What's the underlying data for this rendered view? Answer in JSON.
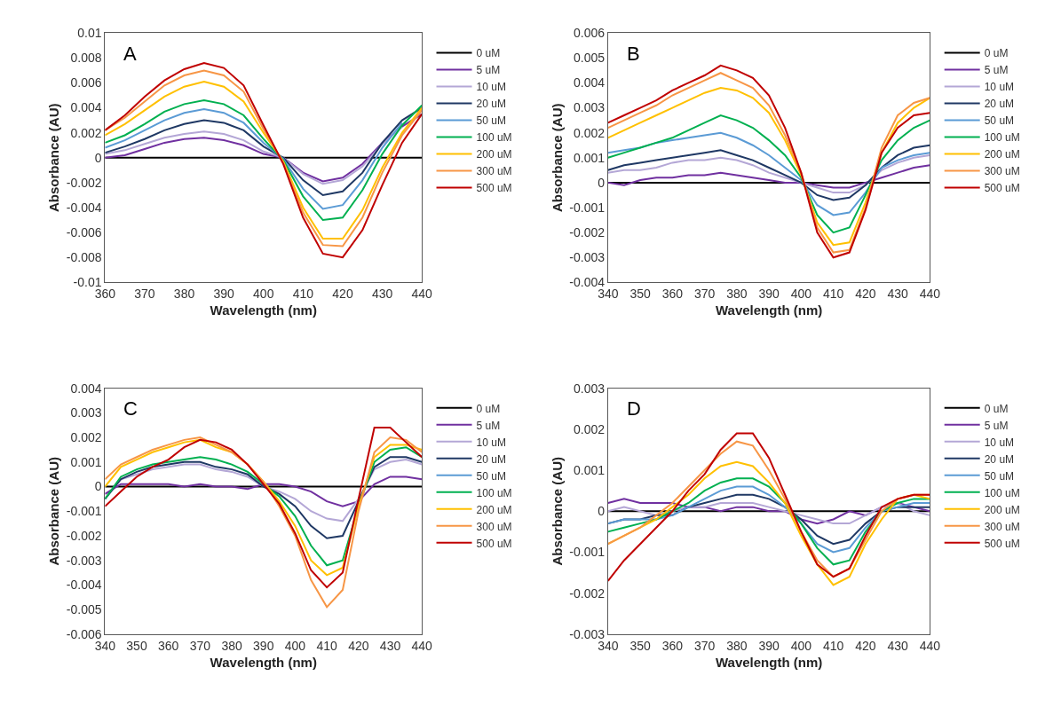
{
  "chart_data": [
    {
      "type": "line",
      "annotations": [
        "A"
      ],
      "xlabel": "Wavelength (nm)",
      "ylabel": "Absorbance (AU)",
      "legend": "right",
      "grid": false,
      "marker": "none",
      "line_style": "solid",
      "x": [
        360,
        365,
        370,
        375,
        380,
        385,
        390,
        395,
        400,
        405,
        410,
        415,
        420,
        425,
        430,
        435,
        440
      ],
      "xlim": [
        360,
        440
      ],
      "xticks": [
        360,
        370,
        380,
        390,
        400,
        410,
        420,
        430,
        440
      ],
      "ylim": [
        -0.01,
        0.01
      ],
      "yticks": [
        -0.01,
        -0.008,
        -0.006,
        -0.004,
        -0.002,
        0,
        0.002,
        0.004,
        0.006,
        0.008,
        0.01
      ],
      "series": [
        {
          "name": "0 uM",
          "color": "#000000",
          "values": [
            0,
            0,
            0,
            0,
            0,
            0,
            0,
            0,
            0,
            0,
            0,
            0,
            0,
            0,
            0,
            0,
            0
          ]
        },
        {
          "name": "5 uM",
          "color": "#7030a0",
          "values": [
            0,
            0.0002,
            0.0007,
            0.0012,
            0.0015,
            0.0016,
            0.0014,
            0.001,
            0.0003,
            0,
            -0.0012,
            -0.0019,
            -0.0016,
            -0.0005,
            0.0012,
            0.0025,
            0.0035
          ]
        },
        {
          "name": "10 uM",
          "color": "#b4a7d6",
          "values": [
            0.0003,
            0.0006,
            0.0011,
            0.0016,
            0.0019,
            0.0021,
            0.0019,
            0.0014,
            0.0005,
            0,
            -0.0013,
            -0.0021,
            -0.0018,
            -0.0007,
            0.0011,
            0.0025,
            null
          ]
        },
        {
          "name": "20 uM",
          "color": "#1f3864",
          "values": [
            0.0004,
            0.0009,
            0.0015,
            0.0022,
            0.0027,
            0.003,
            0.0028,
            0.0022,
            0.0009,
            0,
            -0.0018,
            -0.003,
            -0.0027,
            -0.0012,
            0.0012,
            0.003,
            0.004
          ]
        },
        {
          "name": "50 uM",
          "color": "#5b9bd5",
          "values": [
            0.0008,
            0.0014,
            0.0022,
            0.003,
            0.0036,
            0.0039,
            0.0036,
            0.0028,
            0.0012,
            -0.0001,
            -0.0025,
            -0.0041,
            -0.0038,
            -0.0018,
            0.0008,
            0.0028,
            null
          ]
        },
        {
          "name": "100 uM",
          "color": "#00b050",
          "values": [
            0.0012,
            0.0018,
            0.0027,
            0.0037,
            0.0043,
            0.0046,
            0.0043,
            0.0034,
            0.0015,
            -0.0002,
            -0.0031,
            -0.005,
            -0.0048,
            -0.0026,
            0.0003,
            0.0026,
            0.0042
          ]
        },
        {
          "name": "200 uM",
          "color": "#ffc000",
          "values": [
            0.0018,
            0.0027,
            0.0038,
            0.0049,
            0.0057,
            0.0061,
            0.0057,
            0.0045,
            0.002,
            -0.0003,
            -0.004,
            -0.0065,
            -0.0065,
            -0.0042,
            -0.0008,
            0.002,
            0.004
          ]
        },
        {
          "name": "300 uM",
          "color": "#f79646",
          "values": [
            0.0022,
            0.0032,
            0.0045,
            0.0058,
            0.0066,
            0.007,
            0.0066,
            0.0053,
            0.0023,
            -0.0004,
            -0.0044,
            -0.007,
            -0.0071,
            -0.0048,
            -0.0012,
            0.0018,
            0.0038
          ]
        },
        {
          "name": "500 uM",
          "color": "#c00000",
          "values": [
            0.0022,
            0.0034,
            0.0049,
            0.0062,
            0.0071,
            0.0076,
            0.0072,
            0.0058,
            0.0026,
            -0.0005,
            -0.0048,
            -0.0077,
            -0.008,
            -0.0058,
            -0.0022,
            0.0012,
            0.0035
          ]
        }
      ]
    },
    {
      "type": "line",
      "annotations": [
        "B"
      ],
      "xlabel": "Wavelength (nm)",
      "ylabel": "Absorbance (AU)",
      "legend": "right",
      "grid": false,
      "marker": "none",
      "line_style": "solid",
      "x": [
        340,
        345,
        350,
        355,
        360,
        365,
        370,
        375,
        380,
        385,
        390,
        395,
        400,
        405,
        410,
        415,
        420,
        425,
        430,
        435,
        440
      ],
      "xlim": [
        340,
        440
      ],
      "xticks": [
        340,
        350,
        360,
        370,
        380,
        390,
        400,
        410,
        420,
        430,
        440
      ],
      "ylim": [
        -0.004,
        0.006
      ],
      "yticks": [
        -0.004,
        -0.003,
        -0.002,
        -0.001,
        0,
        0.001,
        0.002,
        0.003,
        0.004,
        0.005,
        0.006
      ],
      "series": [
        {
          "name": "0 uM",
          "color": "#000000",
          "values": [
            0,
            0,
            0,
            0,
            0,
            0,
            0,
            0,
            0,
            0,
            0,
            0,
            0,
            0,
            0,
            0,
            0,
            0,
            0,
            0,
            0
          ]
        },
        {
          "name": "5 uM",
          "color": "#7030a0",
          "values": [
            0,
            -0.0001,
            0.0001,
            0.0002,
            0.0002,
            0.0003,
            0.0003,
            0.0004,
            0.0003,
            0.0002,
            0.0001,
            0,
            0,
            -0.0001,
            -0.0002,
            -0.0002,
            0,
            0.0002,
            0.0004,
            0.0006,
            0.0007
          ]
        },
        {
          "name": "10 uM",
          "color": "#b4a7d6",
          "values": [
            0.0004,
            0.0005,
            0.0005,
            0.0006,
            0.0008,
            0.0009,
            0.0009,
            0.001,
            0.0009,
            0.0007,
            0.0004,
            0.0002,
            0,
            -0.0002,
            -0.0004,
            -0.0004,
            -0.0001,
            0.0005,
            0.0008,
            0.001,
            0.0011
          ]
        },
        {
          "name": "20 uM",
          "color": "#1f3864",
          "values": [
            0.0005,
            0.0007,
            0.0008,
            0.0009,
            0.001,
            0.0011,
            0.0012,
            0.0013,
            0.0011,
            0.0009,
            0.0006,
            0.0003,
            0,
            -0.0005,
            -0.0007,
            -0.0006,
            -0.0001,
            0.0006,
            0.0011,
            0.0014,
            0.0015
          ]
        },
        {
          "name": "50 uM",
          "color": "#5b9bd5",
          "values": [
            0.0012,
            0.0013,
            0.0014,
            0.0016,
            0.0017,
            0.0018,
            0.0019,
            0.002,
            0.0018,
            0.0015,
            0.0011,
            0.0006,
            0.0001,
            -0.0009,
            -0.0013,
            -0.0012,
            -0.0004,
            0.0006,
            0.0009,
            0.0011,
            0.0012
          ]
        },
        {
          "name": "100 uM",
          "color": "#00b050",
          "values": [
            0.001,
            0.0012,
            0.0014,
            0.0016,
            0.0018,
            0.0021,
            0.0024,
            0.0027,
            0.0025,
            0.0022,
            0.0017,
            0.0011,
            0.0002,
            -0.0013,
            -0.002,
            -0.0018,
            -0.0005,
            0.0009,
            0.0017,
            0.0022,
            0.0025
          ]
        },
        {
          "name": "200 uM",
          "color": "#ffc000",
          "values": [
            0.0018,
            0.0021,
            0.0024,
            0.0027,
            0.003,
            0.0033,
            0.0036,
            0.0038,
            0.0037,
            0.0034,
            0.0028,
            0.0017,
            0.0003,
            -0.0016,
            -0.0025,
            -0.0024,
            -0.0008,
            0.0012,
            0.0024,
            0.003,
            0.0034
          ]
        },
        {
          "name": "300 uM",
          "color": "#f79646",
          "values": [
            0.0022,
            0.0025,
            0.0028,
            0.0031,
            0.0035,
            0.0038,
            0.0041,
            0.0044,
            0.0041,
            0.0038,
            0.0031,
            0.0019,
            0.0004,
            -0.0018,
            -0.0028,
            -0.0027,
            -0.001,
            0.0014,
            0.0027,
            0.0032,
            0.0034
          ]
        },
        {
          "name": "500 uM",
          "color": "#c00000",
          "values": [
            0.0024,
            0.0027,
            0.003,
            0.0033,
            0.0037,
            0.004,
            0.0043,
            0.0047,
            0.0045,
            0.0042,
            0.0035,
            0.0022,
            0.0004,
            -0.002,
            -0.003,
            -0.0028,
            -0.0011,
            0.0012,
            0.0022,
            0.0027,
            0.0028
          ]
        }
      ]
    },
    {
      "type": "line",
      "annotations": [
        "C"
      ],
      "xlabel": "Wavelength (nm)",
      "ylabel": "Absorbance (AU)",
      "legend": "right",
      "grid": false,
      "marker": "none",
      "line_style": "solid",
      "x": [
        340,
        345,
        350,
        355,
        360,
        365,
        370,
        375,
        380,
        385,
        390,
        395,
        400,
        405,
        410,
        415,
        420,
        425,
        430,
        435,
        440
      ],
      "xlim": [
        340,
        440
      ],
      "xticks": [
        340,
        350,
        360,
        370,
        380,
        390,
        400,
        410,
        420,
        430,
        440
      ],
      "ylim": [
        -0.006,
        0.004
      ],
      "yticks": [
        -0.006,
        -0.005,
        -0.004,
        -0.003,
        -0.002,
        -0.001,
        0,
        0.001,
        0.002,
        0.003,
        0.004
      ],
      "series": [
        {
          "name": "0 uM",
          "color": "#000000",
          "values": [
            0,
            0,
            0,
            0,
            0,
            0,
            0,
            0,
            0,
            0,
            0,
            0,
            0,
            0,
            0,
            0,
            0,
            0,
            0,
            0,
            0
          ]
        },
        {
          "name": "5 uM",
          "color": "#7030a0",
          "values": [
            -0.0003,
            0.0001,
            0.0001,
            0.0001,
            0.0001,
            0,
            0.0001,
            0,
            0,
            -0.0001,
            0.0001,
            0.0001,
            0,
            -0.0002,
            -0.0006,
            -0.0008,
            -0.0006,
            0.0001,
            0.0004,
            0.0004,
            0.0003
          ]
        },
        {
          "name": "10 uM",
          "color": "#b4a7d6",
          "values": [
            -0.0005,
            0.0003,
            0.0005,
            0.0007,
            0.0008,
            0.0009,
            0.0009,
            0.0007,
            0.0006,
            0.0004,
            0,
            -0.0002,
            -0.0005,
            -0.001,
            -0.0013,
            -0.0014,
            -0.0005,
            0.0007,
            0.001,
            0.0011,
            0.0009
          ]
        },
        {
          "name": "20 uM",
          "color": "#1f3864",
          "values": [
            -0.0005,
            0.0003,
            0.0006,
            0.0008,
            0.0009,
            0.001,
            0.001,
            0.0008,
            0.0007,
            0.0005,
            0,
            -0.0003,
            -0.0008,
            -0.0016,
            -0.0021,
            -0.002,
            -0.0006,
            0.0008,
            0.0012,
            0.0012,
            0.001
          ]
        },
        {
          "name": "50 uM",
          "color": "#5b9bd5",
          "values": [
            null,
            null,
            null,
            null,
            null,
            null,
            null,
            null,
            null,
            null,
            null,
            null,
            null,
            null,
            null,
            null,
            null,
            null,
            null,
            null,
            null
          ]
        },
        {
          "name": "100 uM",
          "color": "#00b050",
          "values": [
            -0.0005,
            0.0004,
            0.0007,
            0.0009,
            0.001,
            0.0011,
            0.0012,
            0.0011,
            0.0009,
            0.0006,
            0.0001,
            -0.0004,
            -0.0012,
            -0.0024,
            -0.0032,
            -0.003,
            -0.0008,
            0.001,
            0.0015,
            0.0016,
            0.0012
          ]
        },
        {
          "name": "200 uM",
          "color": "#ffc000",
          "values": [
            0,
            0.0008,
            0.0011,
            0.0014,
            0.0016,
            0.0018,
            0.0019,
            0.0016,
            0.0014,
            0.0009,
            0.0002,
            -0.0006,
            -0.0016,
            -0.003,
            -0.0036,
            -0.0033,
            -0.0008,
            0.0012,
            0.0017,
            0.0017,
            0.0015
          ]
        },
        {
          "name": "300 uM",
          "color": "#f79646",
          "values": [
            0.0003,
            0.0009,
            0.0012,
            0.0015,
            0.0017,
            0.0019,
            0.002,
            0.0017,
            0.0014,
            0.0009,
            0.0002,
            -0.0008,
            -0.002,
            -0.0038,
            -0.0049,
            -0.0042,
            -0.001,
            0.0014,
            0.002,
            0.0019,
            0.0014
          ]
        },
        {
          "name": "500 uM",
          "color": "#c00000",
          "values": [
            -0.0008,
            -0.0002,
            0.0004,
            0.0008,
            0.0011,
            0.0016,
            0.0019,
            0.0018,
            0.0015,
            0.0009,
            0.0001,
            -0.0007,
            -0.0019,
            -0.0034,
            -0.0041,
            -0.0035,
            -0.0005,
            0.0024,
            0.0024,
            0.0018,
            0.0012
          ]
        }
      ]
    },
    {
      "type": "line",
      "annotations": [
        "D"
      ],
      "xlabel": "Wavelength (nm)",
      "ylabel": "Absorbance (AU)",
      "legend": "right",
      "grid": false,
      "marker": "none",
      "line_style": "solid",
      "x": [
        340,
        345,
        350,
        355,
        360,
        365,
        370,
        375,
        380,
        385,
        390,
        395,
        400,
        405,
        410,
        415,
        420,
        425,
        430,
        435,
        440
      ],
      "xlim": [
        340,
        440
      ],
      "xticks": [
        340,
        350,
        360,
        370,
        380,
        390,
        400,
        410,
        420,
        430,
        440
      ],
      "ylim": [
        -0.003,
        0.003
      ],
      "yticks": [
        -0.003,
        -0.002,
        -0.001,
        0,
        0.001,
        0.002,
        0.003
      ],
      "series": [
        {
          "name": "0 uM",
          "color": "#000000",
          "values": [
            0,
            0,
            0,
            0,
            0,
            0,
            0,
            0,
            0,
            0,
            0,
            0,
            0,
            0,
            0,
            0,
            0,
            0,
            0,
            0,
            0
          ]
        },
        {
          "name": "5 uM",
          "color": "#7030a0",
          "values": [
            0.0002,
            0.0003,
            0.0002,
            0.0002,
            0.0002,
            0.0001,
            0.0001,
            0,
            0.0001,
            0.0001,
            0,
            0,
            -0.0002,
            -0.0003,
            -0.0002,
            0,
            -0.0001,
            0.0001,
            0.0002,
            0.0001,
            0
          ]
        },
        {
          "name": "10 uM",
          "color": "#b4a7d6",
          "values": [
            0,
            0.0001,
            0,
            -0.0001,
            0,
            0.0001,
            0.0001,
            0.0002,
            0.0002,
            0.0002,
            0.0001,
            0,
            -0.0001,
            -0.0002,
            -0.0003,
            -0.0003,
            -0.0001,
            0.0001,
            0.0002,
            0,
            -0.0001
          ]
        },
        {
          "name": "20 uM",
          "color": "#1f3864",
          "values": [
            -0.0003,
            -0.0002,
            -0.0002,
            -0.0001,
            -0.0001,
            0.0001,
            0.0002,
            0.0003,
            0.0004,
            0.0004,
            0.0003,
            0.0001,
            -0.0002,
            -0.0006,
            -0.0008,
            -0.0007,
            -0.0003,
            0,
            0.0001,
            0.0001,
            0.0001
          ]
        },
        {
          "name": "50 uM",
          "color": "#5b9bd5",
          "values": [
            -0.0003,
            -0.0002,
            -0.0002,
            -0.0002,
            -0.0001,
            0.0001,
            0.0003,
            0.0005,
            0.0006,
            0.0006,
            0.0004,
            0.0001,
            -0.0003,
            -0.0008,
            -0.001,
            -0.0009,
            -0.0004,
            0,
            0.0001,
            0.0002,
            0.0002
          ]
        },
        {
          "name": "100 uM",
          "color": "#00b050",
          "values": [
            -0.0005,
            -0.0004,
            -0.0003,
            -0.0002,
            0,
            0.0002,
            0.0005,
            0.0007,
            0.0008,
            0.0008,
            0.0006,
            0.0002,
            -0.0003,
            -0.0009,
            -0.0013,
            -0.0012,
            -0.0005,
            0,
            0.0002,
            0.0003,
            0.0003
          ]
        },
        {
          "name": "200 uM",
          "color": "#ffc000",
          "values": [
            -0.0008,
            -0.0006,
            -0.0004,
            -0.0002,
            0.0001,
            0.0004,
            0.0008,
            0.0011,
            0.0012,
            0.0011,
            0.0007,
            0.0002,
            -0.0006,
            -0.0013,
            -0.0018,
            -0.0016,
            -0.0008,
            -0.0002,
            0.0003,
            0.0004,
            0.0003
          ]
        },
        {
          "name": "300 uM",
          "color": "#f79646",
          "values": [
            -0.0008,
            -0.0006,
            -0.0004,
            -0.0001,
            0.0002,
            0.0006,
            0.001,
            0.0014,
            0.0017,
            0.0016,
            0.001,
            0.0003,
            -0.0005,
            -0.0012,
            -0.0016,
            -0.0014,
            -0.0007,
            0,
            0.0003,
            0.0004,
            0.0004
          ]
        },
        {
          "name": "500 uM",
          "color": "#c00000",
          "values": [
            -0.0017,
            -0.0012,
            -0.0008,
            -0.0004,
            0,
            0.0005,
            0.0009,
            0.0015,
            0.0019,
            0.0019,
            0.0013,
            0.0004,
            -0.0005,
            -0.0013,
            -0.0016,
            -0.0014,
            -0.0006,
            0.0001,
            0.0003,
            0.0004,
            0.0004
          ]
        }
      ]
    }
  ]
}
